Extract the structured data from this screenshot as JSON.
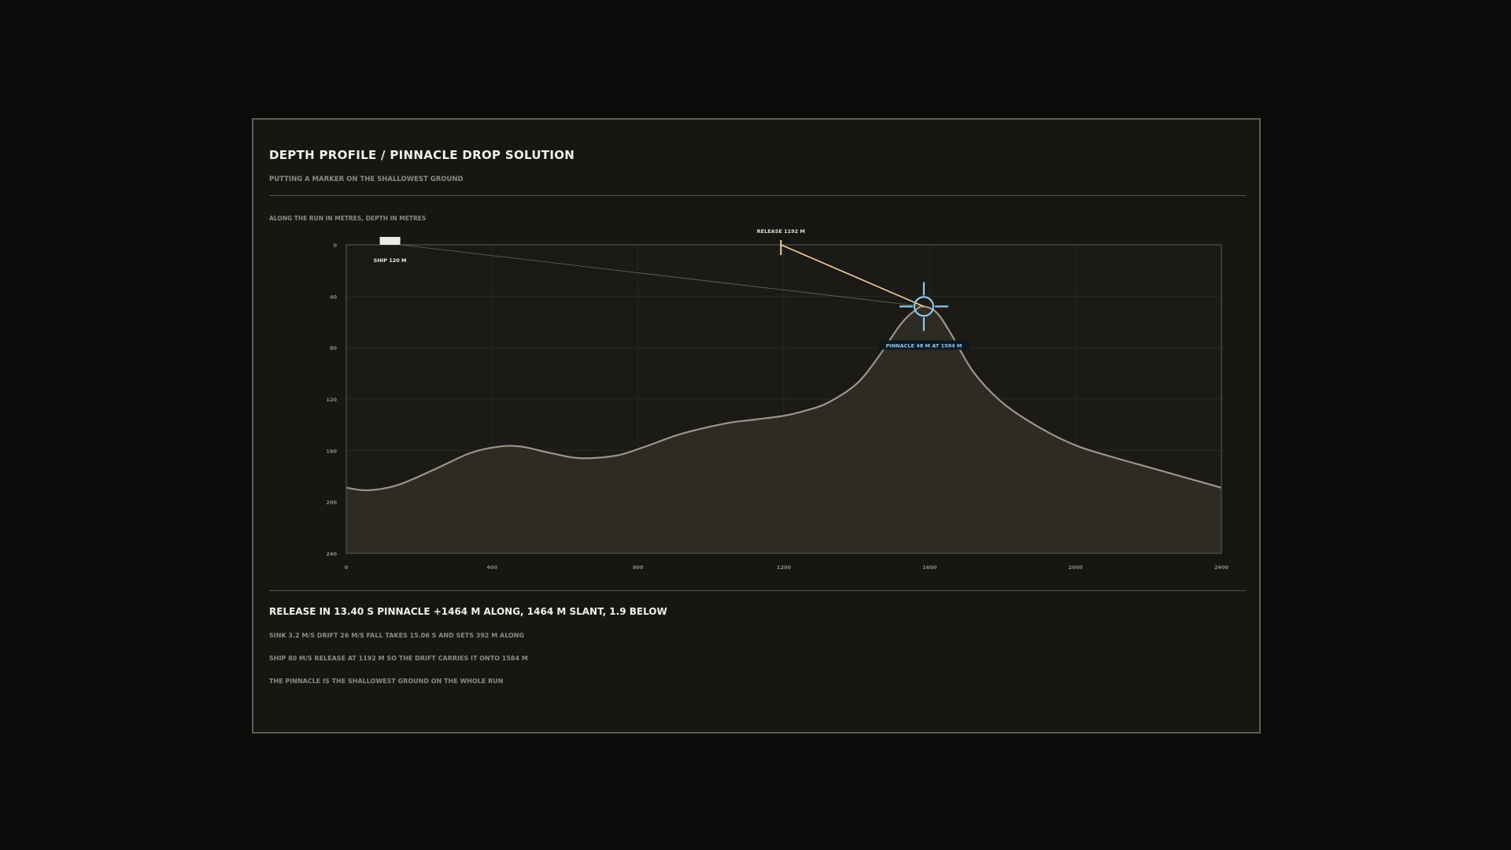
{
  "header": {
    "title": "DEPTH PROFILE / PINNACLE DROP SOLUTION",
    "subtitle": "PUTTING A MARKER ON THE SHALLOWEST GROUND"
  },
  "chart": {
    "caption": "ALONG THE RUN IN METRES, DEPTH IN METRES",
    "ship_label": "SHIP  120 M",
    "release_label": "RELEASE 1192 M",
    "pinnacle_label": "PINNACLE   48 M AT 1584 M"
  },
  "footer": {
    "headline": "RELEASE IN 13.40 S   PINNACLE +1464 M ALONG, 1464 M SLANT,  1.9 BELOW",
    "notes": [
      "SINK 3.2 M/S   DRIFT 26 M/S   FALL TAKES 15.06 S AND SETS  392 M ALONG",
      "SHIP 80 M/S   RELEASE AT 1192 M SO THE DRIFT CARRIES IT ONTO 1584 M",
      "THE PINNACLE IS THE SHALLOWEST GROUND ON THE WHOLE RUN"
    ]
  },
  "colors": {
    "background": "#0b0b09",
    "panel": "#161613",
    "terrain_line": "#9a968a",
    "terrain_fill": "#2e2b24",
    "release_line": "#f3cf9f",
    "target": "#8fc8ea"
  },
  "chart_data": {
    "type": "area",
    "x_ticks": [
      "0",
      "400",
      "800",
      "1200",
      "1600",
      "2000",
      "2400"
    ],
    "y_ticks": [
      "0",
      "40",
      "80",
      "120",
      "160",
      "200",
      "240"
    ],
    "xlim": [
      0,
      2400
    ],
    "ylim": [
      0,
      240
    ],
    "y_inverted": true,
    "grid": true,
    "series": [
      {
        "x": [
          0,
          60,
          140,
          240,
          340,
          420,
          480,
          560,
          640,
          740,
          820,
          920,
          1040,
          1120,
          1200,
          1260,
          1320,
          1400,
          1460,
          1520,
          1560,
          1584,
          1620,
          1660,
          1720,
          1800,
          1900,
          2000,
          2100,
          2200,
          2300,
          2400
        ],
        "y": [
          189,
          191,
          187,
          175,
          162,
          157,
          157,
          162,
          166,
          164,
          157,
          147,
          139,
          136,
          133,
          129,
          123,
          108,
          87,
          62,
          51,
          48,
          53,
          70,
          99,
          123,
          142,
          156,
          165,
          173,
          181,
          189
        ]
      }
    ],
    "markers": {
      "ship": {
        "x": 120,
        "y": 0
      },
      "release": {
        "x": 1192,
        "y": 0
      },
      "pinnacle": {
        "x": 1584,
        "y": 48
      }
    }
  }
}
